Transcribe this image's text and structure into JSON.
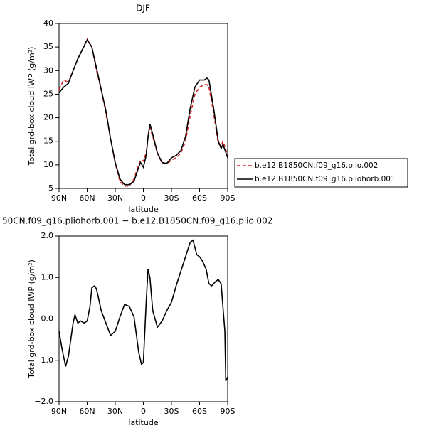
{
  "chart_data": [
    {
      "type": "line",
      "title": "DJF",
      "x_label": "latitude",
      "y_label": "Total grd-box cloud IWP (g/m²)",
      "x": [
        90,
        85,
        80,
        75,
        70,
        65,
        60,
        55,
        50,
        45,
        40,
        35,
        30,
        25,
        20,
        15,
        10,
        5,
        3,
        0,
        -3,
        -5,
        -7,
        -10,
        -15,
        -20,
        -25,
        -30,
        -35,
        -40,
        -45,
        -50,
        -55,
        -60,
        -65,
        -68,
        -70,
        -75,
        -80,
        -83,
        -85,
        -90
      ],
      "series": [
        {
          "name": "b.e12.B1850CN.f09_g16.plio.002",
          "color": "#d62020",
          "dash": "dashed",
          "values": [
            26,
            28,
            27.5,
            30,
            32.5,
            34.5,
            36.7,
            35,
            30,
            26,
            21,
            15.5,
            10.3,
            6.5,
            5.5,
            5.5,
            7,
            10,
            11,
            10.8,
            12.5,
            16,
            17.8,
            16,
            12.5,
            10.3,
            10.2,
            11,
            11.5,
            12.5,
            15,
            20.5,
            25,
            26.5,
            27,
            27,
            26.5,
            21,
            14.5,
            14,
            15,
            12
          ]
        },
        {
          "name": "b.e12.B1850CN.f09_g16.pliohorb.001",
          "color": "#000000",
          "dash": "solid",
          "values": [
            25.3,
            26.5,
            27.3,
            30,
            32.5,
            34.5,
            36.5,
            35,
            30.5,
            26,
            21.5,
            15.5,
            10.5,
            7,
            5.8,
            5.8,
            6.5,
            9.5,
            10.5,
            9.5,
            12,
            16,
            18.7,
            16.5,
            12.5,
            10.5,
            10.3,
            11.5,
            12,
            13,
            16,
            22,
            26.5,
            28,
            28,
            28.4,
            28,
            22,
            15,
            13.5,
            14.3,
            11.5
          ]
        }
      ],
      "xlim": [
        90,
        -90
      ],
      "xticks": [
        {
          "value": 90,
          "label": "90N"
        },
        {
          "value": 60,
          "label": "60N"
        },
        {
          "value": 30,
          "label": "30N"
        },
        0,
        {
          "value": -30,
          "label": "30S"
        },
        {
          "value": -60,
          "label": "60S"
        },
        {
          "value": -90,
          "label": "90S"
        }
      ],
      "ylim": [
        5,
        40
      ],
      "yticks": [
        5,
        10,
        15,
        20,
        25,
        30,
        35,
        40
      ],
      "grid": false,
      "legend": "right"
    },
    {
      "type": "line",
      "title": "50CN.f09_g16.pliohorb.001 − b.e12.B1850CN.f09_g16.plio.002",
      "x_label": "latitude",
      "y_label": "Total grd-box cloud IWP (g/m²)",
      "x": [
        90,
        87,
        83,
        80,
        75,
        73,
        70,
        67,
        63,
        60,
        57,
        55,
        52,
        50,
        45,
        40,
        35,
        30,
        25,
        20,
        15,
        10,
        5,
        2,
        0,
        -3,
        -5,
        -7,
        -10,
        -15,
        -20,
        -25,
        -30,
        -35,
        -40,
        -45,
        -50,
        -53,
        -57,
        -60,
        -63,
        -67,
        -70,
        -73,
        -77,
        -80,
        -83,
        -87,
        -88,
        -90
      ],
      "series": [
        {
          "color": "#000000",
          "dash": "solid",
          "values": [
            -0.3,
            -0.7,
            -1.15,
            -0.9,
            -0.1,
            0.1,
            -0.1,
            -0.05,
            -0.1,
            -0.05,
            0.3,
            0.75,
            0.8,
            0.72,
            0.2,
            -0.1,
            -0.4,
            -0.3,
            0.05,
            0.35,
            0.3,
            0.05,
            -0.8,
            -1.1,
            -1.05,
            0.4,
            1.2,
            1.0,
            0.2,
            -0.2,
            -0.05,
            0.2,
            0.4,
            0.8,
            1.15,
            1.5,
            1.85,
            1.9,
            1.55,
            1.5,
            1.4,
            1.2,
            0.85,
            0.8,
            0.9,
            0.95,
            0.85,
            -0.3,
            -1.5,
            -1.4
          ]
        }
      ],
      "xlim": [
        90,
        -90
      ],
      "xticks": [
        {
          "value": 90,
          "label": "90N"
        },
        {
          "value": 60,
          "label": "60N"
        },
        {
          "value": 30,
          "label": "30N"
        },
        0,
        {
          "value": -30,
          "label": "30S"
        },
        {
          "value": -60,
          "label": "60S"
        },
        {
          "value": -90,
          "label": "90S"
        }
      ],
      "ylim": [
        -2,
        2
      ],
      "yticks": [
        {
          "value": -2,
          "label": "−2.0"
        },
        {
          "value": -1,
          "label": "−1.0"
        },
        {
          "value": 0,
          "label": "0.0"
        },
        {
          "value": 1,
          "label": "1.0"
        },
        {
          "value": 2,
          "label": "2.0"
        }
      ],
      "grid": false
    }
  ]
}
